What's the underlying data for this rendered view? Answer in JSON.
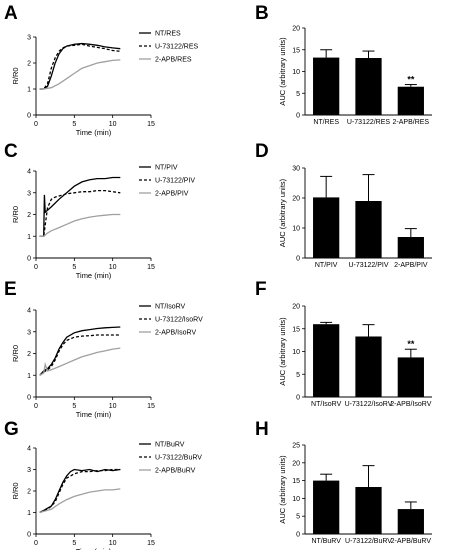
{
  "panels": [
    {
      "letter": "A",
      "chart_data": {
        "type": "line",
        "xlabel": "Time (min)",
        "ylabel": "R/R0",
        "xlim": [
          0,
          15
        ],
        "ylim": [
          0,
          3
        ],
        "xticks": [
          "0",
          "5",
          "10",
          "15"
        ],
        "yticks": [
          "0",
          "1",
          "2",
          "3"
        ],
        "legend_position": "top-right",
        "series": [
          {
            "name": "NT/RES",
            "style": "solid",
            "color": "#000000",
            "x": [
              0.5,
              1,
              1.5,
              2,
              2.5,
              3,
              3.5,
              4,
              5,
              6,
              7,
              8,
              9,
              10,
              11
            ],
            "y": [
              1.0,
              1.0,
              1.1,
              1.5,
              2.0,
              2.35,
              2.55,
              2.65,
              2.72,
              2.75,
              2.72,
              2.68,
              2.62,
              2.58,
              2.55
            ]
          },
          {
            "name": "U-73122/RES",
            "style": "dashed",
            "color": "#000000",
            "x": [
              0.5,
              1,
              1.5,
              2,
              2.5,
              3,
              3.5,
              4,
              5,
              6,
              7,
              8,
              9,
              10,
              11
            ],
            "y": [
              1.0,
              1.0,
              1.2,
              1.8,
              2.2,
              2.45,
              2.58,
              2.65,
              2.68,
              2.72,
              2.65,
              2.6,
              2.55,
              2.48,
              2.45
            ]
          },
          {
            "name": "2-APB/RES",
            "style": "solid",
            "color": "#a0a0a0",
            "x": [
              0.5,
              1,
              2,
              3,
              4,
              5,
              6,
              7,
              8,
              9,
              10,
              11
            ],
            "y": [
              1.0,
              1.0,
              1.05,
              1.2,
              1.4,
              1.6,
              1.8,
              1.9,
              2.0,
              2.05,
              2.1,
              2.12
            ]
          }
        ]
      }
    },
    {
      "letter": "B",
      "chart_data": {
        "type": "bar",
        "ylabel": "AUC (arbitrary units)",
        "ylim": [
          0,
          20
        ],
        "yticks": [
          "0",
          "5",
          "10",
          "15",
          "20"
        ],
        "categories": [
          "NT/RES",
          "U-73122/RES",
          "2-APB/RES"
        ],
        "values": [
          13.2,
          13.1,
          6.5
        ],
        "errors": [
          1.8,
          1.6,
          0.5
        ],
        "annotations": [
          "",
          "",
          "**"
        ]
      }
    },
    {
      "letter": "C",
      "chart_data": {
        "type": "line",
        "xlabel": "Time (min)",
        "ylabel": "R/R0",
        "xlim": [
          0,
          15
        ],
        "ylim": [
          0,
          4
        ],
        "xticks": [
          "0",
          "5",
          "10",
          "15"
        ],
        "yticks": [
          "0",
          "1",
          "2",
          "3",
          "4"
        ],
        "legend_position": "top-right",
        "series": [
          {
            "name": "NT/PIV",
            "style": "solid",
            "color": "#000000",
            "x": [
              0.5,
              1,
              1.1,
              1.2,
              1.5,
              2,
              3,
              4,
              5,
              6,
              7,
              8,
              9,
              10,
              11
            ],
            "y": [
              1.0,
              1.0,
              2.9,
              2.1,
              2.2,
              2.35,
              2.7,
              3.0,
              3.3,
              3.5,
              3.6,
              3.65,
              3.65,
              3.7,
              3.7
            ]
          },
          {
            "name": "U-73122/PIV",
            "style": "dashed",
            "color": "#000000",
            "x": [
              0.5,
              1,
              1.5,
              2,
              2.5,
              3,
              4,
              5,
              6,
              7,
              8,
              9,
              10,
              11
            ],
            "y": [
              1.0,
              1.0,
              2.3,
              2.7,
              2.8,
              2.85,
              2.95,
              3.0,
              3.05,
              3.05,
              3.1,
              3.1,
              3.05,
              3.0
            ]
          },
          {
            "name": "2-APB/PIV",
            "style": "solid",
            "color": "#a0a0a0",
            "x": [
              0.5,
              1,
              1.5,
              2,
              3,
              4,
              5,
              6,
              7,
              8,
              9,
              10,
              11
            ],
            "y": [
              1.0,
              1.0,
              1.15,
              1.25,
              1.4,
              1.55,
              1.7,
              1.8,
              1.88,
              1.93,
              1.97,
              2.0,
              2.0
            ]
          }
        ]
      }
    },
    {
      "letter": "D",
      "chart_data": {
        "type": "bar",
        "ylabel": "AUC (arbitrary units)",
        "ylim": [
          0,
          30
        ],
        "yticks": [
          "0",
          "10",
          "20",
          "30"
        ],
        "categories": [
          "NT/PIV",
          "U-73122/PIV",
          "2-APB/PIV"
        ],
        "values": [
          20.2,
          19.0,
          7.0
        ],
        "errors": [
          7.0,
          8.8,
          2.8
        ],
        "annotations": [
          "",
          "",
          ""
        ]
      }
    },
    {
      "letter": "E",
      "chart_data": {
        "type": "line",
        "xlabel": "Time (min)",
        "ylabel": "R/R0",
        "xlim": [
          0,
          15
        ],
        "ylim": [
          0,
          4
        ],
        "xticks": [
          "0",
          "5",
          "10",
          "15"
        ],
        "yticks": [
          "0",
          "1",
          "2",
          "3",
          "4"
        ],
        "legend_position": "top-right",
        "series": [
          {
            "name": "NT/IsoRV",
            "style": "solid",
            "color": "#000000",
            "x": [
              0.5,
              1,
              1.5,
              2,
              2.5,
              3,
              3.5,
              4,
              5,
              6,
              7,
              8,
              9,
              10,
              11
            ],
            "y": [
              1.0,
              1.2,
              1.3,
              1.5,
              1.8,
              2.2,
              2.5,
              2.75,
              2.95,
              3.05,
              3.1,
              3.15,
              3.18,
              3.2,
              3.22
            ]
          },
          {
            "name": "U-73122/IsoRV",
            "style": "dashed",
            "color": "#000000",
            "x": [
              0.5,
              1,
              1.5,
              2,
              2.5,
              3,
              3.5,
              4,
              5,
              6,
              7,
              8,
              9,
              10,
              11
            ],
            "y": [
              1.0,
              1.15,
              1.25,
              1.4,
              1.7,
              2.1,
              2.4,
              2.6,
              2.75,
              2.8,
              2.82,
              2.85,
              2.85,
              2.85,
              2.85
            ]
          },
          {
            "name": "2-APB/IsoRV",
            "style": "solid",
            "color": "#a0a0a0",
            "x": [
              0.5,
              1,
              1.2,
              1.5,
              2,
              3,
              4,
              5,
              6,
              7,
              8,
              9,
              10,
              11
            ],
            "y": [
              1.0,
              1.1,
              1.5,
              1.2,
              1.25,
              1.4,
              1.55,
              1.7,
              1.85,
              1.95,
              2.05,
              2.12,
              2.2,
              2.25
            ]
          }
        ]
      }
    },
    {
      "letter": "F",
      "chart_data": {
        "type": "bar",
        "ylabel": "AUC (arbitrary units)",
        "ylim": [
          0,
          20
        ],
        "yticks": [
          "0",
          "5",
          "10",
          "15",
          "20"
        ],
        "categories": [
          "NT/IsoRV",
          "U-73122/IsoRV",
          "2-APB/IsoRV"
        ],
        "values": [
          16.0,
          13.3,
          8.7
        ],
        "errors": [
          0.4,
          2.6,
          1.8
        ],
        "annotations": [
          "",
          "",
          "**"
        ]
      }
    },
    {
      "letter": "G",
      "chart_data": {
        "type": "line",
        "xlabel": "Time (min)",
        "ylabel": "R/R0",
        "xlim": [
          0,
          15
        ],
        "ylim": [
          0,
          4
        ],
        "xticks": [
          "0",
          "5",
          "10",
          "15"
        ],
        "yticks": [
          "0",
          "1",
          "2",
          "3",
          "4"
        ],
        "legend_position": "top-right",
        "series": [
          {
            "name": "NT/BuRV",
            "style": "solid",
            "color": "#000000",
            "x": [
              0.5,
              1,
              1.5,
              2,
              2.5,
              3,
              3.5,
              4,
              4.5,
              5,
              6,
              7,
              8,
              9,
              10,
              11
            ],
            "y": [
              1.0,
              1.1,
              1.2,
              1.3,
              1.6,
              2.0,
              2.4,
              2.7,
              2.9,
              3.0,
              2.95,
              3.0,
              2.9,
              3.0,
              2.95,
              3.0
            ]
          },
          {
            "name": "U-73122/BuRV",
            "style": "dashed",
            "color": "#000000",
            "x": [
              0.5,
              1,
              1.5,
              2,
              2.5,
              3,
              3.5,
              4,
              5,
              6,
              7,
              8,
              9,
              10,
              11
            ],
            "y": [
              1.0,
              1.1,
              1.15,
              1.3,
              1.5,
              1.9,
              2.3,
              2.6,
              2.8,
              2.9,
              2.9,
              2.95,
              2.95,
              3.0,
              3.0
            ]
          },
          {
            "name": "2-APB/BuRV",
            "style": "solid",
            "color": "#a0a0a0",
            "x": [
              0.5,
              1,
              2,
              3,
              4,
              5,
              6,
              7,
              8,
              9,
              10,
              11
            ],
            "y": [
              1.0,
              1.05,
              1.15,
              1.4,
              1.6,
              1.75,
              1.85,
              1.95,
              2.0,
              2.05,
              2.05,
              2.1
            ]
          }
        ]
      }
    },
    {
      "letter": "H",
      "chart_data": {
        "type": "bar",
        "ylabel": "AUC (arbitrary units)",
        "ylim": [
          0,
          25
        ],
        "yticks": [
          "0",
          "5",
          "10",
          "15",
          "20",
          "25"
        ],
        "categories": [
          "NT/BuRV",
          "U-73122/BuRV",
          "2-APB/BuRV"
        ],
        "values": [
          15.0,
          13.2,
          7.0
        ],
        "errors": [
          1.8,
          6.0,
          2.0
        ],
        "annotations": [
          "",
          "",
          ""
        ]
      }
    }
  ]
}
